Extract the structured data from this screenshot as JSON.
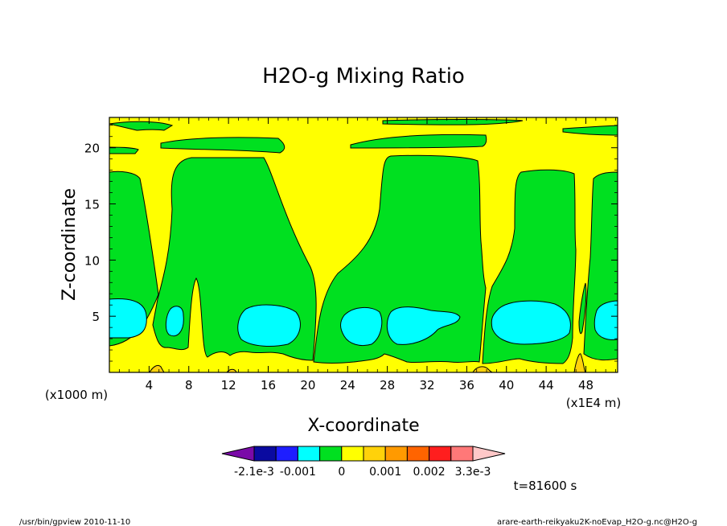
{
  "chart_data": {
    "type": "heatmap",
    "title": "H2O-g Mixing Ratio",
    "xlabel": "X-coordinate",
    "ylabel": "Z-coordinate",
    "x_unit_left": "(x1000 m)",
    "x_unit_right": "(x1E4 m)",
    "x_ticks": [
      "4",
      "8",
      "12",
      "16",
      "20",
      "24",
      "28",
      "32",
      "36",
      "40",
      "44",
      "48"
    ],
    "x_tick_values": [
      4,
      8,
      12,
      16,
      20,
      24,
      28,
      32,
      36,
      40,
      44,
      48
    ],
    "xlim": [
      0,
      51.2
    ],
    "y_ticks": [
      "5",
      "10",
      "15",
      "20"
    ],
    "y_tick_values": [
      5,
      10,
      15,
      20
    ],
    "ylim": [
      0,
      22.7
    ],
    "time_label": "t=81600 s",
    "colorbar": {
      "colors": [
        "#7a0aa8",
        "#0a0aa0",
        "#1e1eff",
        "#00ffff",
        "#00e020",
        "#ffff00",
        "#ffd20a",
        "#ff9a00",
        "#ff6400",
        "#ff1e1e",
        "#ff7878",
        "#ffc8c8"
      ],
      "labels": [
        "-2.1e-3",
        "-0.001",
        "0",
        "0.001",
        "0.002",
        "3.3e-3"
      ],
      "label_boundaries": [
        1,
        3,
        5,
        7,
        9,
        11
      ]
    },
    "regions": [
      {
        "level": "yellow",
        "color": "#ffff00",
        "description_value": "0 to 0.0005"
      },
      {
        "level": "green",
        "color": "#00e020",
        "description_value": "-0.0005 to 0"
      },
      {
        "level": "cyan",
        "color": "#00ffff",
        "description_value": "-0.001 to -0.0005"
      },
      {
        "level": "orange",
        "color": "#ffd20a",
        "description_value": "0.0005 to 0.001"
      }
    ],
    "grid": false
  },
  "footer": {
    "left": "/usr/bin/gpview   2010-11-10",
    "right": "arare-earth-reikyaku2K-noEvap_H2O-g.nc@H2O-g"
  }
}
